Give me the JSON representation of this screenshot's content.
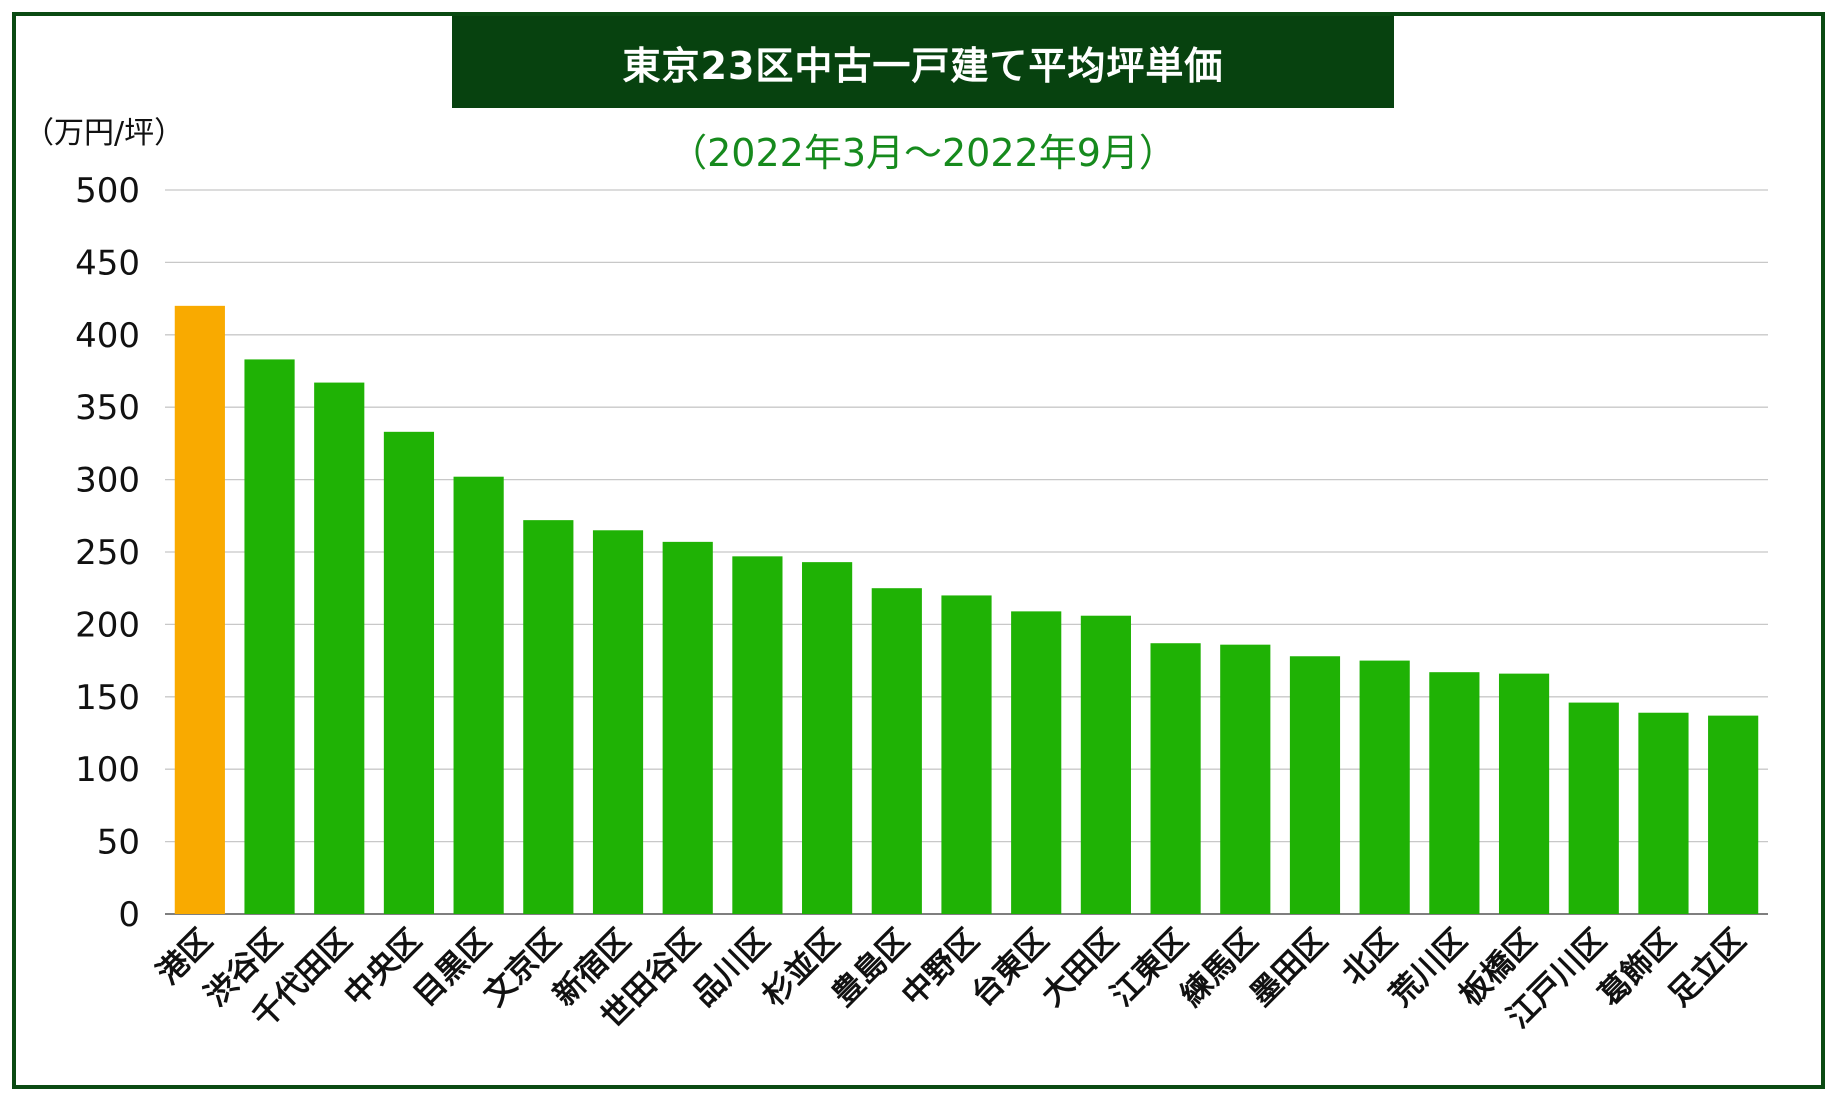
{
  "chart_data": {
    "type": "bar",
    "title": "東京23区中古一戸建て平均坪単価",
    "subtitle": "（2022年3月〜2022年9月）",
    "ylabel": "（万円/坪）",
    "ylim": [
      0,
      500
    ],
    "yticks": [
      0,
      50,
      100,
      150,
      200,
      250,
      300,
      350,
      400,
      450,
      500
    ],
    "grid": true,
    "categories": [
      "港区",
      "渋谷区",
      "千代田区",
      "中央区",
      "目黒区",
      "文京区",
      "新宿区",
      "世田谷区",
      "品川区",
      "杉並区",
      "豊島区",
      "中野区",
      "台東区",
      "大田区",
      "江東区",
      "練馬区",
      "墨田区",
      "北区",
      "荒川区",
      "板橋区",
      "江戸川区",
      "葛飾区",
      "足立区"
    ],
    "values": [
      420,
      383,
      367,
      333,
      302,
      272,
      265,
      257,
      247,
      243,
      225,
      220,
      209,
      206,
      187,
      186,
      178,
      175,
      167,
      166,
      146,
      139,
      137
    ],
    "colors": {
      "highlight": "#f9aa00",
      "bar": "#1fb205",
      "grid": "#c8c8c8",
      "title_bg": "#07420f",
      "subtitle": "#168a1d",
      "frame": "#0a4a12"
    }
  }
}
